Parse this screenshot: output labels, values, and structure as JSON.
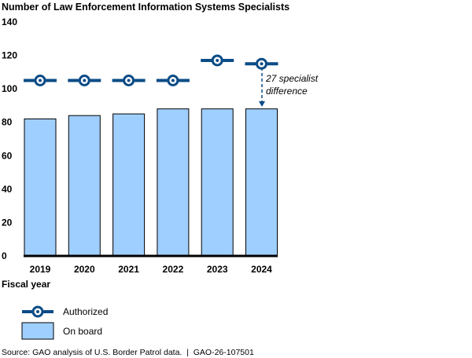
{
  "chart_data": {
    "type": "bar",
    "title": "Number of Law Enforcement Information Systems Specialists",
    "xlabel": "Fiscal year",
    "ylabel": "",
    "ylim": [
      0,
      140
    ],
    "yticks": [
      0,
      20,
      40,
      60,
      80,
      100,
      120,
      140
    ],
    "categories": [
      "2019",
      "2020",
      "2021",
      "2022",
      "2023",
      "2024"
    ],
    "series": [
      {
        "name": "On board",
        "type": "bar",
        "values": [
          82,
          84,
          85,
          88,
          88,
          88
        ],
        "color": "#9fcfff"
      },
      {
        "name": "Authorized",
        "type": "marker",
        "values": [
          105,
          105,
          105,
          105,
          117,
          115
        ],
        "color": "#0b4c86"
      }
    ],
    "annotation": {
      "lines": [
        "27 specialist",
        "difference"
      ],
      "category": "2024"
    },
    "legend": {
      "placement": "bottom-left",
      "entries": [
        "Authorized",
        "On board"
      ]
    },
    "grid": false
  },
  "source": "Source: GAO analysis of U.S. Border Patrol data.  |  GAO-26-107501"
}
